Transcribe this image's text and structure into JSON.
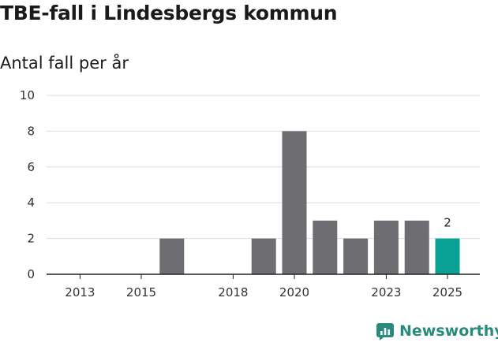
{
  "header": {
    "title": "TBE-fall i Lindesbergs kommun",
    "subtitle": "Antal fall per år"
  },
  "brand": {
    "name": "Newsworthy",
    "icon": "newsworthy-logo-icon",
    "color": "#2a8a7e"
  },
  "colors": {
    "bar": "#6e6d72",
    "highlight": "#08a194",
    "grid": "#dddddd",
    "axis": "#222222"
  },
  "chart_data": {
    "type": "bar",
    "title": "TBE-fall i Lindesbergs kommun",
    "subtitle": "Antal fall per år",
    "xlabel": "",
    "ylabel": "",
    "categories": [
      "2013",
      "2014",
      "2015",
      "2016",
      "2017",
      "2018",
      "2019",
      "2020",
      "2021",
      "2022",
      "2023",
      "2024",
      "2025"
    ],
    "values": [
      0,
      0,
      0,
      2,
      0,
      0,
      2,
      8,
      3,
      2,
      3,
      3,
      2
    ],
    "x_tick_labels": [
      "2013",
      "2015",
      "2018",
      "2020",
      "2023",
      "2025"
    ],
    "y_ticks": [
      0,
      2,
      4,
      6,
      8,
      10
    ],
    "ylim": [
      0,
      10
    ],
    "grid": true,
    "highlight_category": "2025",
    "data_labels": [
      {
        "category": "2025",
        "value": "2"
      }
    ]
  }
}
